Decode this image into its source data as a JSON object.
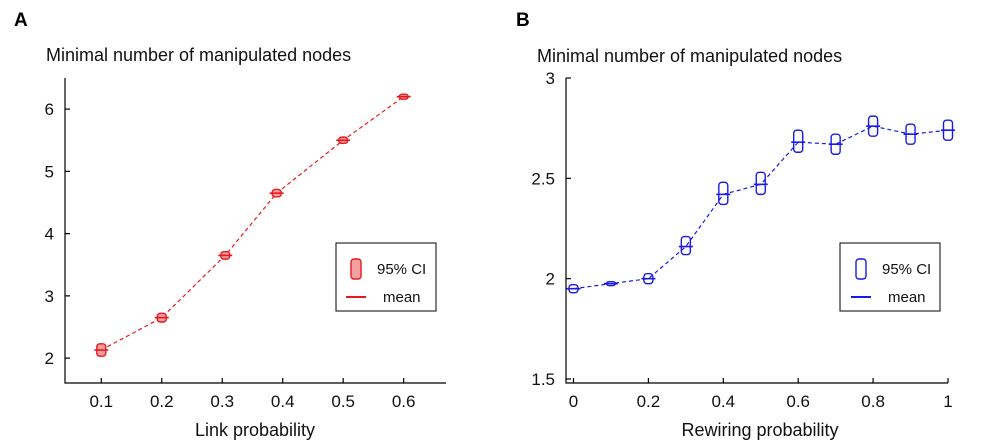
{
  "chart_data": [
    {
      "panel": "A",
      "type": "line",
      "title": "Minimal number of manipulated nodes",
      "xlabel": "Link probability",
      "ylabel": "",
      "xlim": [
        0.04,
        0.67
      ],
      "ylim": [
        1.6,
        6.5
      ],
      "xticks": [
        0.1,
        0.2,
        0.3,
        0.4,
        0.5,
        0.6
      ],
      "xtick_labels": [
        "0.1",
        "0.2",
        "0.3",
        "0.4",
        "0.5",
        "0.6"
      ],
      "yticks": [
        2,
        3,
        4,
        5,
        6
      ],
      "ytick_labels": [
        "2",
        "3",
        "4",
        "5",
        "6"
      ],
      "color": "#e8191e",
      "fill": "#f4a0a0",
      "legend": {
        "position": "right",
        "ci_label": "95% CI",
        "mean_label": "mean"
      },
      "series": [
        {
          "name": "mean",
          "x": [
            0.1,
            0.2,
            0.305,
            0.39,
            0.5,
            0.6
          ],
          "mean": [
            2.13,
            2.65,
            3.65,
            4.65,
            5.5,
            6.2
          ],
          "ci_low": [
            2.03,
            2.58,
            3.59,
            4.59,
            5.45,
            6.16
          ],
          "ci_high": [
            2.23,
            2.72,
            3.71,
            4.71,
            5.55,
            6.24
          ]
        }
      ]
    },
    {
      "panel": "B",
      "type": "line",
      "title": "Minimal number of manipulated nodes",
      "xlabel": "Rewiring probability",
      "ylabel": "",
      "xlim": [
        -0.02,
        1.0
      ],
      "ylim": [
        1.48,
        3.0
      ],
      "xticks": [
        0,
        0.2,
        0.4,
        0.6,
        0.8,
        1
      ],
      "xtick_labels": [
        "0",
        "0.2",
        "0.4",
        "0.6",
        "0.8",
        "1"
      ],
      "yticks": [
        1.5,
        2,
        2.5,
        3
      ],
      "ytick_labels": [
        "1.5",
        "2",
        "2.5",
        "3"
      ],
      "color": "#1a1ae6",
      "fill": "none",
      "legend": {
        "position": "right",
        "ci_label": "95% CI",
        "mean_label": "mean"
      },
      "series": [
        {
          "name": "mean",
          "x": [
            0,
            0.1,
            0.2,
            0.3,
            0.4,
            0.5,
            0.6,
            0.7,
            0.8,
            0.9,
            1.0
          ],
          "mean": [
            1.95,
            1.975,
            2.0,
            2.16,
            2.42,
            2.47,
            2.68,
            2.67,
            2.76,
            2.72,
            2.74
          ],
          "ci_low": [
            1.93,
            1.968,
            1.975,
            2.12,
            2.37,
            2.42,
            2.63,
            2.62,
            2.71,
            2.67,
            2.69
          ],
          "ci_high": [
            1.97,
            1.982,
            2.025,
            2.21,
            2.48,
            2.53,
            2.74,
            2.72,
            2.81,
            2.77,
            2.79
          ]
        }
      ]
    }
  ]
}
